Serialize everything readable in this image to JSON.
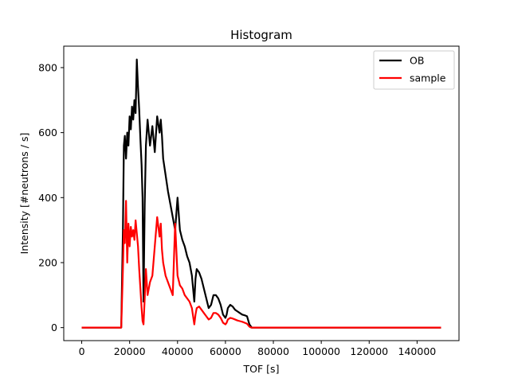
{
  "chart_data": {
    "type": "line",
    "title": "Histogram",
    "xlabel": "TOF [s]",
    "ylabel": "Intensity [#neutrons / s]",
    "xlim": [
      -7500,
      157500
    ],
    "ylim": [
      -40,
      866
    ],
    "xticks": [
      0,
      20000,
      40000,
      60000,
      80000,
      100000,
      120000,
      140000
    ],
    "yticks": [
      0,
      200,
      400,
      600,
      800
    ],
    "grid": false,
    "legend_position": "top-right",
    "series": [
      {
        "name": "OB",
        "color": "#000000",
        "x": [
          0,
          16500,
          17200,
          17600,
          18000,
          18500,
          19000,
          19500,
          20000,
          20500,
          21000,
          21500,
          22000,
          22500,
          23000,
          23500,
          24000,
          24500,
          25000,
          25400,
          25800,
          26300,
          26800,
          27500,
          28500,
          29500,
          30500,
          31500,
          32500,
          33000,
          33500,
          34000,
          35000,
          36000,
          37000,
          38000,
          39000,
          40000,
          41000,
          42000,
          43000,
          44000,
          45000,
          46000,
          47000,
          47500,
          48000,
          49000,
          50000,
          51000,
          52000,
          53000,
          54000,
          55000,
          56000,
          57000,
          58000,
          59000,
          60000,
          60500,
          61000,
          62000,
          63000,
          64000,
          65000,
          66000,
          67000,
          68000,
          69000,
          70000,
          70500,
          71000,
          150000
        ],
        "y": [
          0,
          0,
          300,
          560,
          590,
          520,
          600,
          560,
          650,
          610,
          680,
          640,
          700,
          660,
          825,
          740,
          670,
          580,
          500,
          400,
          80,
          380,
          560,
          640,
          560,
          620,
          540,
          650,
          600,
          640,
          590,
          520,
          470,
          420,
          380,
          340,
          300,
          400,
          300,
          270,
          250,
          220,
          200,
          160,
          80,
          150,
          180,
          170,
          150,
          120,
          90,
          60,
          70,
          100,
          100,
          90,
          70,
          40,
          30,
          40,
          60,
          70,
          65,
          55,
          50,
          45,
          40,
          38,
          35,
          10,
          5,
          0,
          0
        ]
      },
      {
        "name": "sample",
        "color": "#ff0000",
        "x": [
          0,
          16500,
          17200,
          17600,
          18000,
          18500,
          19000,
          19500,
          20000,
          20500,
          21000,
          21500,
          22000,
          22500,
          23000,
          23500,
          24000,
          24500,
          25000,
          25400,
          25800,
          26300,
          26800,
          27500,
          28500,
          29500,
          30500,
          31500,
          32500,
          33000,
          33500,
          34000,
          35000,
          36000,
          37000,
          38000,
          39000,
          40000,
          41000,
          42000,
          43000,
          44000,
          45000,
          46000,
          47000,
          47500,
          48000,
          49000,
          50000,
          51000,
          52000,
          53000,
          54000,
          55000,
          56000,
          57000,
          58000,
          59000,
          60000,
          60500,
          61000,
          62000,
          63000,
          64000,
          65000,
          66000,
          67000,
          68000,
          69000,
          70000,
          70500,
          71000,
          150000
        ],
        "y": [
          0,
          0,
          180,
          300,
          260,
          390,
          200,
          320,
          250,
          310,
          280,
          300,
          270,
          330,
          290,
          250,
          180,
          120,
          60,
          20,
          10,
          90,
          180,
          100,
          140,
          160,
          250,
          340,
          280,
          320,
          240,
          200,
          160,
          140,
          120,
          100,
          320,
          160,
          130,
          120,
          100,
          90,
          80,
          60,
          10,
          40,
          60,
          65,
          55,
          45,
          35,
          25,
          30,
          45,
          45,
          40,
          30,
          15,
          10,
          15,
          25,
          30,
          28,
          25,
          22,
          20,
          18,
          15,
          12,
          3,
          1,
          0,
          0
        ]
      }
    ]
  }
}
